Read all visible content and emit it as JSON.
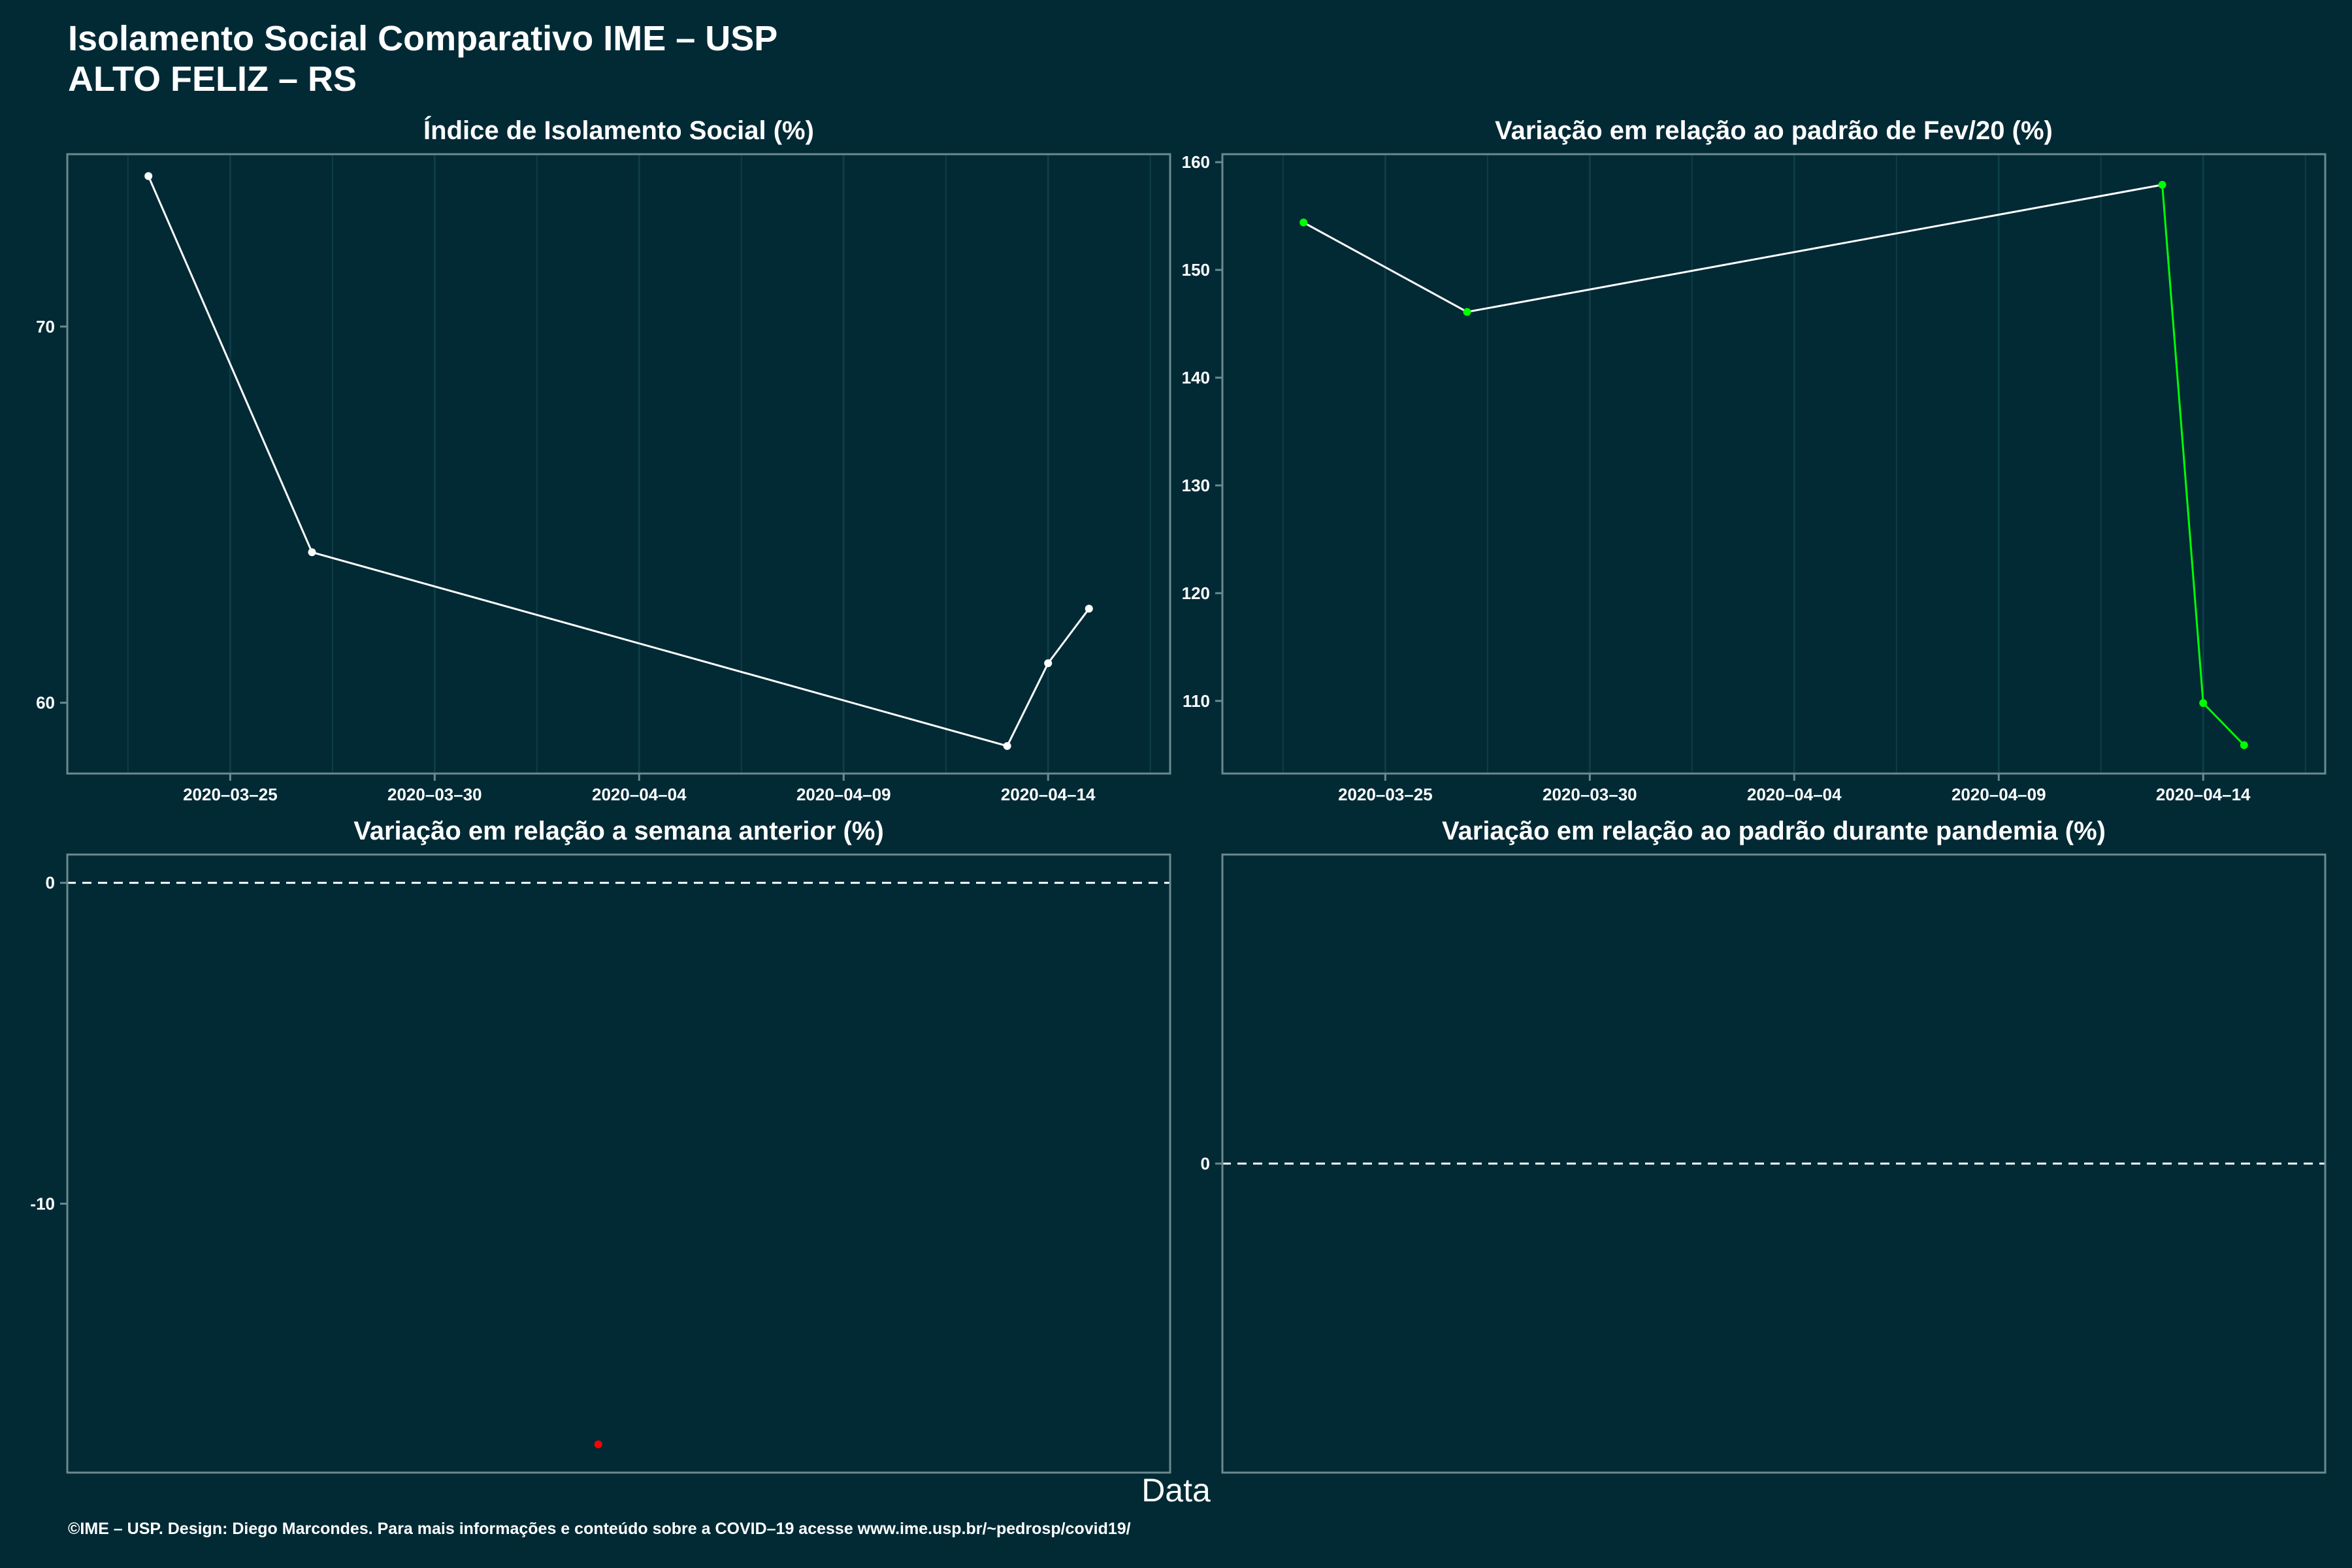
{
  "header": {
    "title": "Isolamento Social Comparativo IME – USP\nALTO FELIZ – RS"
  },
  "x_axis_title": "Data",
  "caption": "©IME – USP. Design: Diego Marcondes. Para mais informações e conteúdo sobre a COVID–19 acesse www.ime.usp.br/~pedrosp/covid19/",
  "colors": {
    "background": "#012a35",
    "grid": "#0e3d48",
    "panel_border": "#6b8a90",
    "line_white": "#ffffff",
    "line_green": "#00ff00",
    "point_red": "#ff0000"
  },
  "chart_data": [
    {
      "id": "p1",
      "type": "line",
      "title": "Índice de Isolamento Social (%)",
      "x_type": "date",
      "xlim": [
        "2020-03-21",
        "2020-04-17"
      ],
      "ylim": [
        58.1,
        74.6
      ],
      "x_ticks": [
        "2020-03-25",
        "2020-03-30",
        "2020-04-04",
        "2020-04-09",
        "2020-04-14"
      ],
      "y_ticks": [
        60,
        70
      ],
      "grid": true,
      "series": [
        {
          "points": [
            {
              "x": "2020-03-23",
              "y": 74.0
            },
            {
              "x": "2020-03-27",
              "y": 64.0
            },
            {
              "x": "2020-04-13",
              "y": 58.85
            },
            {
              "x": "2020-04-14",
              "y": 61.05
            },
            {
              "x": "2020-04-15",
              "y": 62.5
            }
          ],
          "segment_colors": [
            "#ffffff",
            "#ffffff",
            "#ffffff",
            "#ffffff"
          ],
          "point_color": "#ffffff"
        }
      ]
    },
    {
      "id": "p2",
      "type": "line",
      "title": "Variação em relação ao padrão de Fev/20 (%)",
      "x_type": "date",
      "xlim": [
        "2020-03-21",
        "2020-04-17"
      ],
      "ylim": [
        103.2,
        160.8
      ],
      "x_ticks": [
        "2020-03-25",
        "2020-03-30",
        "2020-04-04",
        "2020-04-09",
        "2020-04-14"
      ],
      "y_ticks": [
        110,
        120,
        130,
        140,
        150,
        160
      ],
      "grid": true,
      "series": [
        {
          "points": [
            {
              "x": "2020-03-23",
              "y": 154.4
            },
            {
              "x": "2020-03-27",
              "y": 146.1
            },
            {
              "x": "2020-04-13",
              "y": 157.9
            },
            {
              "x": "2020-04-14",
              "y": 109.8
            },
            {
              "x": "2020-04-15",
              "y": 105.9
            }
          ],
          "segment_colors": [
            "#ffffff",
            "#ffffff",
            "#00ff00",
            "#00ff00"
          ],
          "point_color": "#00ff00"
        }
      ]
    },
    {
      "id": "p3",
      "type": "scatter",
      "title": "Variação em relação a semana anterior (%)",
      "x_type": "date",
      "xlim": [
        "2020-03-21",
        "2020-04-17"
      ],
      "ylim": [
        -18.4,
        0.9
      ],
      "x_ticks": [],
      "y_ticks": [
        -10,
        0
      ],
      "grid": false,
      "hline": 0,
      "series": [
        {
          "points": [
            {
              "x": "2020-04-03",
              "y": -17.5
            }
          ],
          "point_color": "#ff0000"
        }
      ]
    },
    {
      "id": "p4",
      "type": "line",
      "title": "Variação em relação ao padrão durante pandemia (%)",
      "x_type": "date",
      "xlim": [
        "2020-03-21",
        "2020-04-17"
      ],
      "ylim": [
        -1,
        1
      ],
      "x_ticks": [],
      "y_ticks": [
        0
      ],
      "grid": false,
      "hline": 0,
      "series": []
    }
  ]
}
